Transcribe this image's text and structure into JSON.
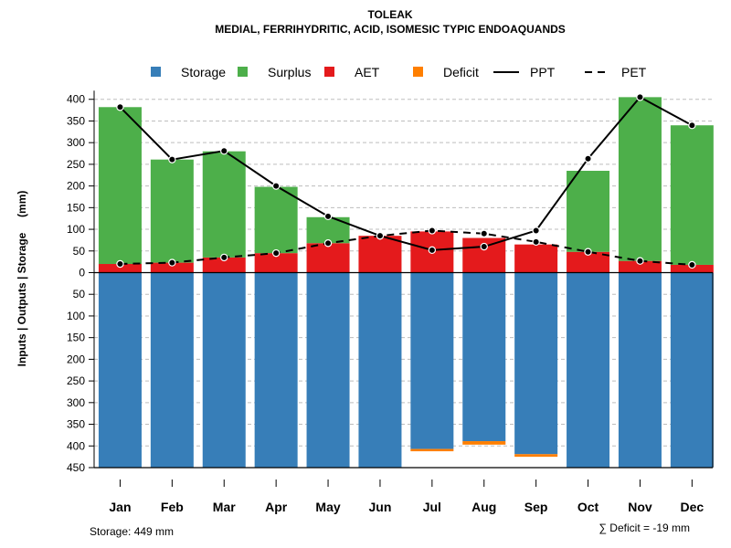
{
  "chart_data": {
    "type": "bar",
    "title": "TOLEAK",
    "subtitle": "MEDIAL, FERRIHYDRITIC, ACID, ISOMESIC TYPIC ENDOAQUANDS",
    "ylabel": "Inputs | Outputs | Storage     (mm)",
    "ylim": [
      -450,
      420
    ],
    "yticks": [
      400,
      350,
      300,
      250,
      200,
      150,
      100,
      50,
      0,
      -50,
      -100,
      -150,
      -200,
      -250,
      -300,
      -350,
      -400,
      -450
    ],
    "ytick_labels": [
      "400",
      "350",
      "300",
      "250",
      "200",
      "150",
      "100",
      "50",
      "0",
      "50",
      "100",
      "150",
      "200",
      "250",
      "300",
      "350",
      "400",
      "450"
    ],
    "categories": [
      "Jan",
      "Feb",
      "Mar",
      "Apr",
      "May",
      "Jun",
      "Jul",
      "Aug",
      "Sep",
      "Oct",
      "Nov",
      "Dec"
    ],
    "colors": {
      "storage": "#377eb8",
      "surplus": "#4daf4a",
      "aet": "#e41a1c",
      "deficit": "#ff7f00",
      "grid": "#bdbdbd",
      "line": "#000000"
    },
    "legend": [
      {
        "key": "storage",
        "label": "Storage",
        "kind": "box"
      },
      {
        "key": "surplus",
        "label": "Surplus",
        "kind": "box"
      },
      {
        "key": "aet",
        "label": "AET",
        "kind": "box"
      },
      {
        "key": "deficit",
        "label": "Deficit",
        "kind": "box"
      },
      {
        "key": "ppt",
        "label": "PPT",
        "kind": "solid"
      },
      {
        "key": "pet",
        "label": "PET",
        "kind": "dashed"
      }
    ],
    "legend_position": "top",
    "series": {
      "aet": [
        20,
        23,
        35,
        45,
        68,
        85,
        95,
        80,
        65,
        48,
        27,
        18
      ],
      "surplus": [
        362,
        238,
        245,
        153,
        60,
        0,
        0,
        0,
        0,
        187,
        378,
        322
      ],
      "storage": [
        -449,
        -449,
        -449,
        -449,
        -449,
        -449,
        -407,
        -389,
        -419,
        -449,
        -449,
        -449
      ],
      "deficit": [
        0,
        0,
        0,
        0,
        0,
        0,
        -5,
        -8,
        -6,
        0,
        0,
        0
      ],
      "ppt": [
        382,
        261,
        281,
        200,
        130,
        85,
        52,
        60,
        97,
        263,
        405,
        340
      ],
      "pet": [
        20,
        23,
        35,
        45,
        68,
        85,
        97,
        90,
        71,
        48,
        27,
        18
      ]
    },
    "footer_left": "Storage: 449 mm",
    "footer_right": "∑ Deficit = -19 mm"
  }
}
